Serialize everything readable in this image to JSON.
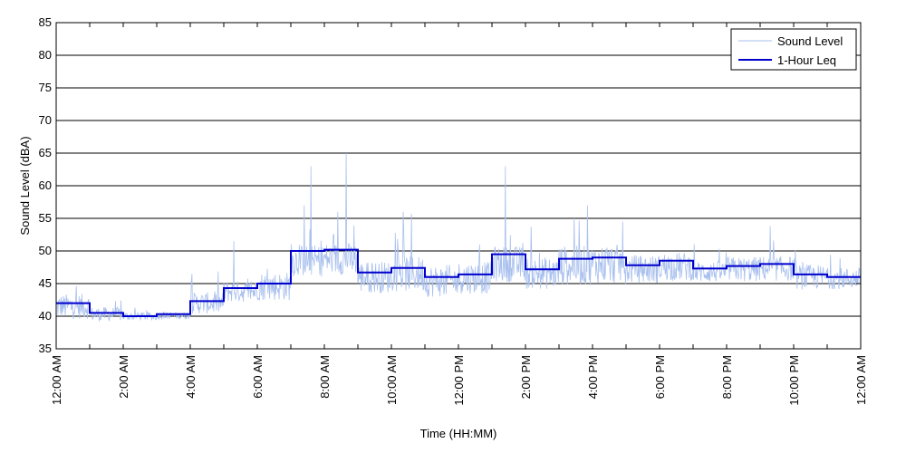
{
  "chart_data": {
    "type": "line",
    "title": "",
    "xlabel": "Time (HH:MM)",
    "ylabel": "Sound Level (dBA)",
    "xlim": [
      0,
      24
    ],
    "ylim": [
      35,
      85
    ],
    "yticks": [
      35,
      40,
      45,
      50,
      55,
      60,
      65,
      70,
      75,
      80,
      85
    ],
    "xticks": [
      0,
      2,
      4,
      6,
      8,
      10,
      12,
      14,
      16,
      18,
      20,
      22,
      24
    ],
    "xtick_labels": [
      "12:00 AM",
      "2:00 AM",
      "4:00 AM",
      "6:00 AM",
      "8:00 AM",
      "10:00 AM",
      "12:00 PM",
      "2:00 PM",
      "4:00 PM",
      "6:00 PM",
      "8:00 PM",
      "10:00 PM",
      "12:00 AM"
    ],
    "grid": "horizontal",
    "legend_position": "top-right",
    "colors": {
      "sound_level": "#a9c0ee",
      "leq": "#0000cc"
    },
    "series": [
      {
        "name": "Sound Level",
        "style": "thin light-blue line",
        "hourly_mean": [
          41.5,
          40.3,
          40.0,
          40.1,
          42.0,
          43.8,
          44.6,
          48.5,
          48.8,
          46.0,
          46.5,
          45.4,
          45.9,
          48.0,
          46.6,
          47.8,
          48.0,
          47.2,
          47.6,
          46.8,
          47.2,
          47.3,
          46.0,
          45.8
        ],
        "hourly_range": [
          3.5,
          2.0,
          1.2,
          1.0,
          3.0,
          3.0,
          4.0,
          4.5,
          4.5,
          4.5,
          5.0,
          4.5,
          4.5,
          5.0,
          4.5,
          5.5,
          5.5,
          4.0,
          4.0,
          3.0,
          3.5,
          3.5,
          3.5,
          3.0
        ],
        "peaks": [
          [
            7.6,
            63.0
          ],
          [
            8.65,
            65.0
          ],
          [
            13.4,
            63.0
          ],
          [
            15.85,
            57.0
          ],
          [
            10.35,
            56.0
          ],
          [
            10.6,
            55.7
          ],
          [
            7.4,
            57.0
          ],
          [
            8.4,
            56.0
          ],
          [
            16.9,
            54.5
          ],
          [
            15.45,
            55.0
          ],
          [
            21.3,
            53.8
          ],
          [
            5.3,
            51.5
          ],
          [
            4.05,
            46.5
          ]
        ]
      },
      {
        "name": "1-Hour Leq",
        "style": "thick dark-blue step line",
        "hours": [
          0,
          1,
          2,
          3,
          4,
          5,
          6,
          7,
          8,
          9,
          10,
          11,
          12,
          13,
          14,
          15,
          16,
          17,
          18,
          19,
          20,
          21,
          22,
          23
        ],
        "values": [
          42.0,
          40.5,
          40.0,
          40.3,
          42.3,
          44.3,
          45.0,
          50.0,
          50.2,
          46.7,
          47.4,
          46.0,
          46.4,
          49.5,
          47.2,
          48.8,
          49.0,
          47.8,
          48.5,
          47.3,
          47.7,
          48.0,
          46.4,
          46.0
        ]
      }
    ]
  }
}
